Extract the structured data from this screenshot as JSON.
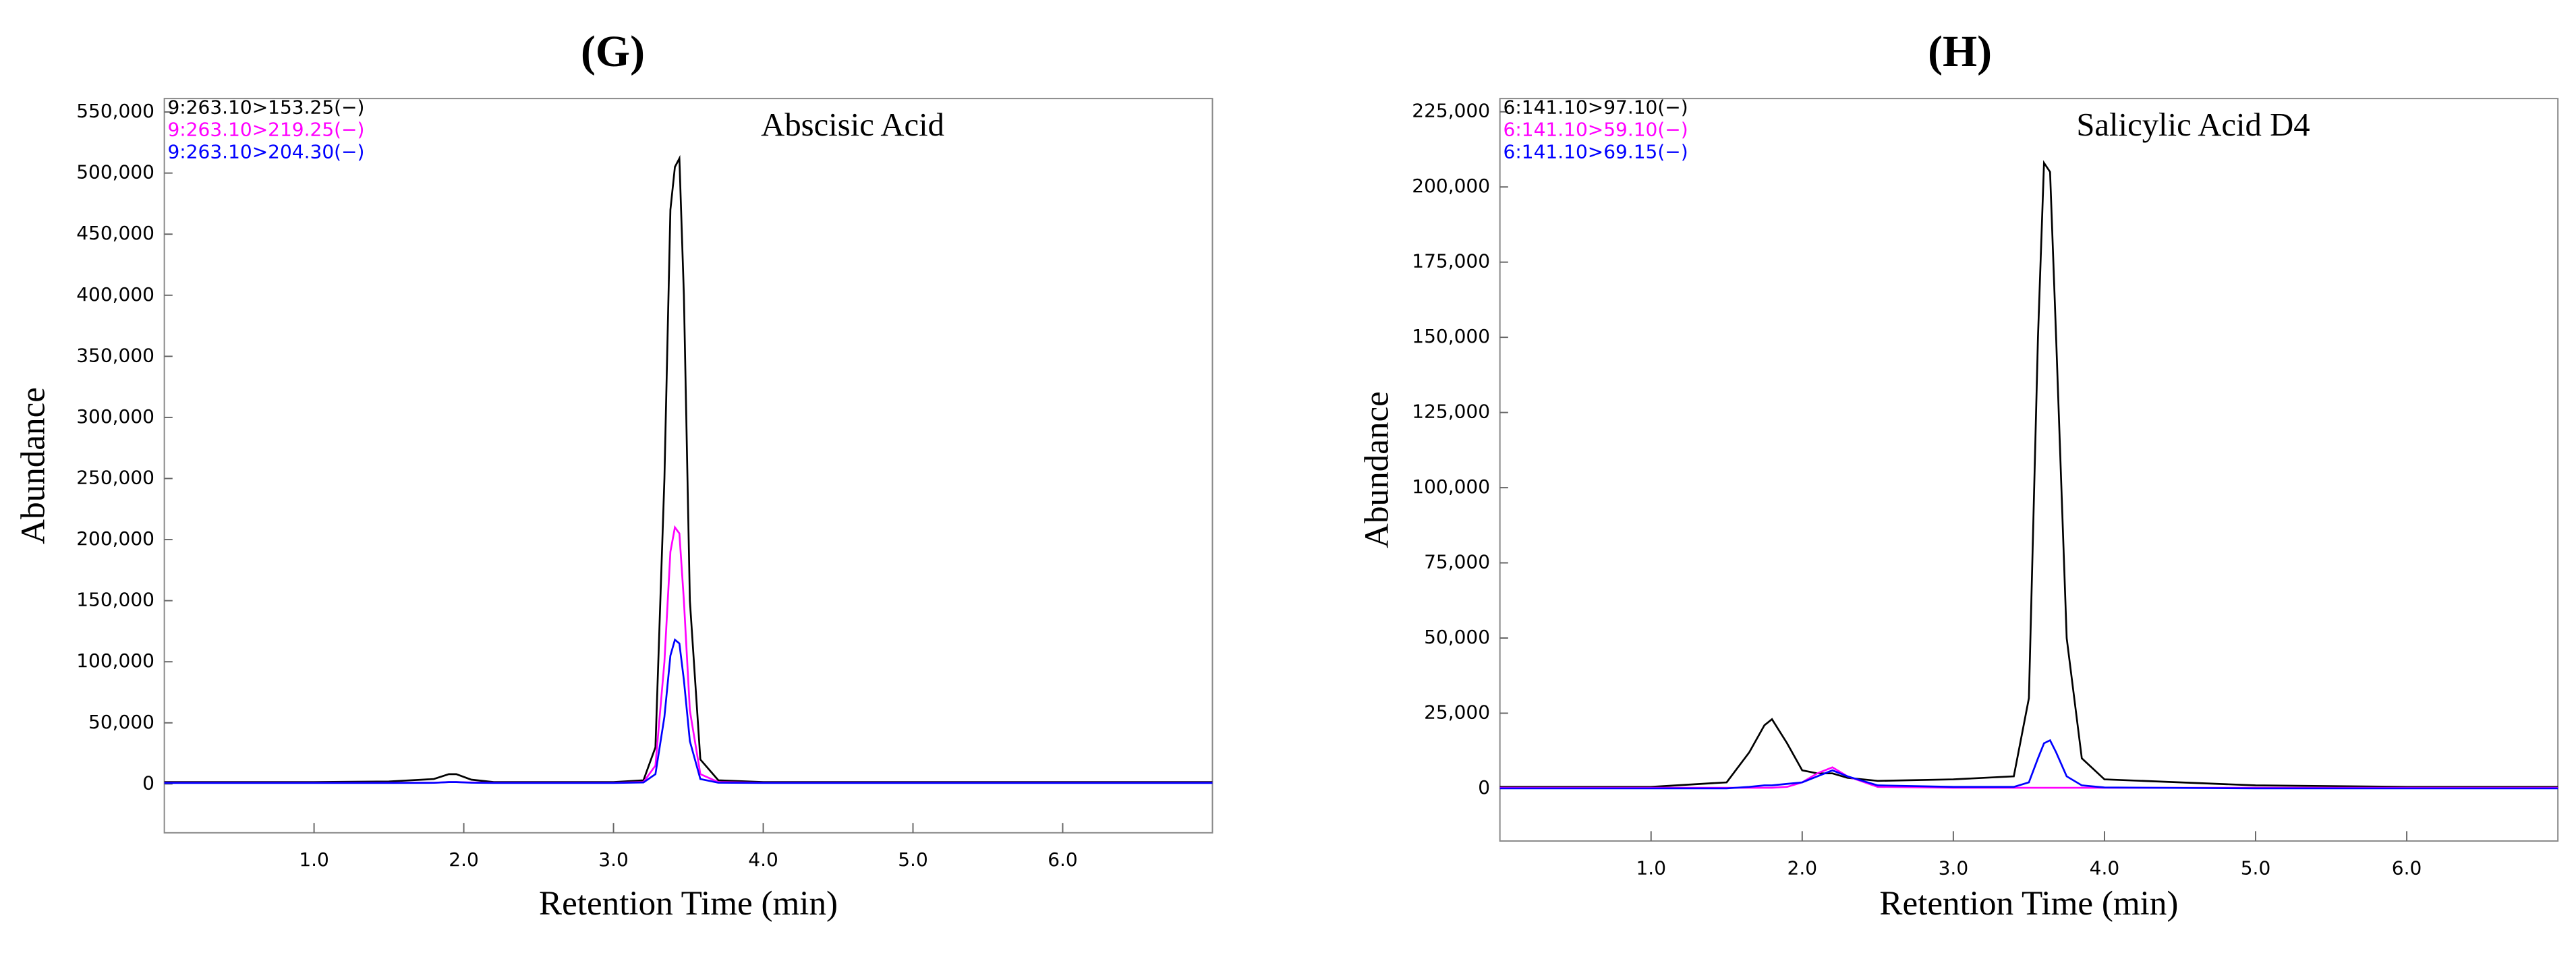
{
  "chart_data": [
    {
      "type": "line",
      "title": "(G)",
      "annotation": "Abscisic Acid",
      "y_label": "Abundance",
      "x_label": "Retention Time (min)",
      "xlim": [
        0,
        7.0
      ],
      "ylim": [
        -40000,
        561000
      ],
      "xticks": [
        {
          "value": 1,
          "label": "1.0"
        },
        {
          "value": 2,
          "label": "2.0"
        },
        {
          "value": 3,
          "label": "3.0"
        },
        {
          "value": 4,
          "label": "4.0"
        },
        {
          "value": 5,
          "label": "5.0"
        },
        {
          "value": 6,
          "label": "6.0"
        }
      ],
      "yticks": [
        0,
        {
          "value": 50000,
          "label": "50,000"
        },
        {
          "value": 100000,
          "label": "100,000"
        },
        {
          "value": 150000,
          "label": "150,000"
        },
        {
          "value": 200000,
          "label": "200,000"
        },
        {
          "value": 250000,
          "label": "250,000"
        },
        {
          "value": 300000,
          "label": "300,000"
        },
        {
          "value": 350000,
          "label": "350,000"
        },
        {
          "value": 400000,
          "label": "400,000"
        },
        {
          "value": 450000,
          "label": "450,000"
        },
        {
          "value": 500000,
          "label": "500,000"
        },
        {
          "value": 550000,
          "label": "550,000"
        }
      ],
      "x": [
        0,
        1.0,
        1.5,
        1.8,
        1.9,
        1.95,
        2.05,
        2.2,
        3.0,
        3.2,
        3.28,
        3.34,
        3.38,
        3.41,
        3.44,
        3.47,
        3.51,
        3.58,
        3.7,
        4.0,
        5.0,
        6.0,
        7.0
      ],
      "series": [
        {
          "name": "9:263.10>153.25(−)",
          "color": "#000000",
          "values": [
            1500,
            1500,
            2000,
            4000,
            8000,
            8000,
            3500,
            1500,
            1500,
            3000,
            30000,
            250000,
            470000,
            505000,
            512000,
            400000,
            150000,
            20000,
            3000,
            1500,
            1500,
            1500,
            1500
          ]
        },
        {
          "name": "9:263.10>219.25(−)",
          "color": "#ff00ff",
          "values": [
            1000,
            1000,
            1000,
            1000,
            1500,
            1500,
            1200,
            1000,
            1000,
            1500,
            15000,
            100000,
            190000,
            210000,
            205000,
            150000,
            60000,
            8000,
            1500,
            1000,
            1000,
            1000,
            1000
          ]
        },
        {
          "name": "9:263.10>204.30(−)",
          "color": "#0000ff",
          "values": [
            800,
            800,
            800,
            900,
            1500,
            1500,
            1000,
            800,
            800,
            1200,
            8000,
            55000,
            105000,
            118000,
            115000,
            85000,
            35000,
            4000,
            1000,
            800,
            800,
            800,
            800
          ]
        }
      ]
    },
    {
      "type": "line",
      "title": "(H)",
      "annotation": "Salicylic Acid D4",
      "y_label": "Abundance",
      "x_label": "Retention Time (min)",
      "xlim": [
        0,
        7.0
      ],
      "ylim": [
        -17500,
        229400
      ],
      "xticks": [
        {
          "value": 1,
          "label": "1.0"
        },
        {
          "value": 2,
          "label": "2.0"
        },
        {
          "value": 3,
          "label": "3.0"
        },
        {
          "value": 4,
          "label": "4.0"
        },
        {
          "value": 5,
          "label": "5.0"
        },
        {
          "value": 6,
          "label": "6.0"
        }
      ],
      "yticks": [
        0,
        {
          "value": 25000,
          "label": "25,000"
        },
        {
          "value": 50000,
          "label": "50,000"
        },
        {
          "value": 75000,
          "label": "75,000"
        },
        {
          "value": 100000,
          "label": "100,000"
        },
        {
          "value": 125000,
          "label": "125,000"
        },
        {
          "value": 150000,
          "label": "150,000"
        },
        {
          "value": 175000,
          "label": "175,000"
        },
        {
          "value": 200000,
          "label": "200,000"
        },
        {
          "value": 225000,
          "label": "225,000"
        }
      ],
      "x": [
        0,
        1.0,
        1.5,
        1.65,
        1.75,
        1.8,
        1.9,
        2.0,
        2.1,
        2.2,
        2.3,
        2.5,
        3.0,
        3.4,
        3.5,
        3.56,
        3.6,
        3.64,
        3.68,
        3.75,
        3.85,
        4.0,
        5.0,
        6.0,
        7.0
      ],
      "series": [
        {
          "name": "6:141.10>97.10(−)",
          "color": "#000000",
          "values": [
            500,
            500,
            2000,
            12000,
            21000,
            23000,
            15000,
            6000,
            5000,
            5000,
            3500,
            2500,
            3000,
            4000,
            30000,
            150000,
            208000,
            205000,
            150000,
            50000,
            10000,
            3000,
            1000,
            500,
            500
          ]
        },
        {
          "name": "6:141.10>59.10(−)",
          "color": "#ff00ff",
          "values": [
            200,
            200,
            200,
            200,
            200,
            200,
            500,
            2000,
            5000,
            7000,
            4000,
            500,
            200,
            200,
            200,
            200,
            200,
            200,
            200,
            200,
            200,
            200,
            200,
            200,
            200
          ]
        },
        {
          "name": "6:141.10>69.15(−)",
          "color": "#0000ff",
          "values": [
            0,
            0,
            0,
            500,
            1000,
            1000,
            1500,
            2000,
            4000,
            6000,
            4000,
            1000,
            500,
            500,
            2000,
            10000,
            15000,
            16000,
            12000,
            4000,
            1000,
            300,
            0,
            0,
            0
          ]
        }
      ]
    }
  ]
}
